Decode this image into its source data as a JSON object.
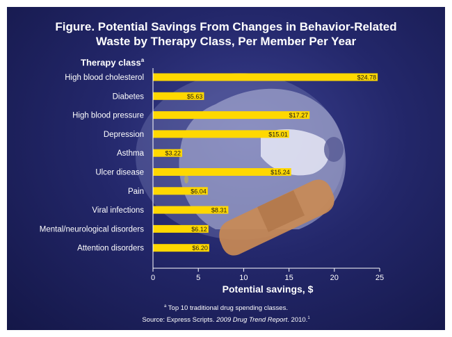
{
  "figure": {
    "title_line1": "Figure. Potential Savings From Changes in Behavior-Related",
    "title_line2": "Waste by Therapy Class, Per Member Per Year",
    "therapy_header": "Therapy class",
    "therapy_header_mark": "a",
    "footnote_mark": "a",
    "footnote_text": " Top 10 traditional drug spending classes.",
    "source_prefix": "Source: Express Scripts. ",
    "source_title": "2009 Drug Trend Report",
    "source_suffix": ". 2010.",
    "source_ref": "1"
  },
  "colors": {
    "bar": "#ffd800",
    "bar_text": "#1a1a1a",
    "axis": "#ffffff",
    "text": "#ffffff"
  },
  "chart_data": {
    "type": "bar",
    "orientation": "horizontal",
    "title": "Figure. Potential Savings From Changes in Behavior-Related Waste by Therapy Class, Per Member Per Year",
    "ylabel": "Therapy class",
    "xlabel": "Potential savings, $",
    "categories": [
      "High blood cholesterol",
      "Diabetes",
      "High blood pressure",
      "Depression",
      "Asthma",
      "Ulcer disease",
      "Pain",
      "Viral infections",
      "Mental/neurological disorders",
      "Attention disorders"
    ],
    "values": [
      24.78,
      5.63,
      17.27,
      15.01,
      3.22,
      15.24,
      6.04,
      8.31,
      6.12,
      6.2
    ],
    "value_labels": [
      "$24.78",
      "$5.63",
      "$17.27",
      "$15.01",
      "$3.22",
      "$15.24",
      "$6.04",
      "$8.31",
      "$6.12",
      "$6.20"
    ],
    "xlim": [
      0,
      25
    ],
    "xticks": [
      0,
      5,
      10,
      15,
      20,
      25
    ],
    "grid": false
  }
}
